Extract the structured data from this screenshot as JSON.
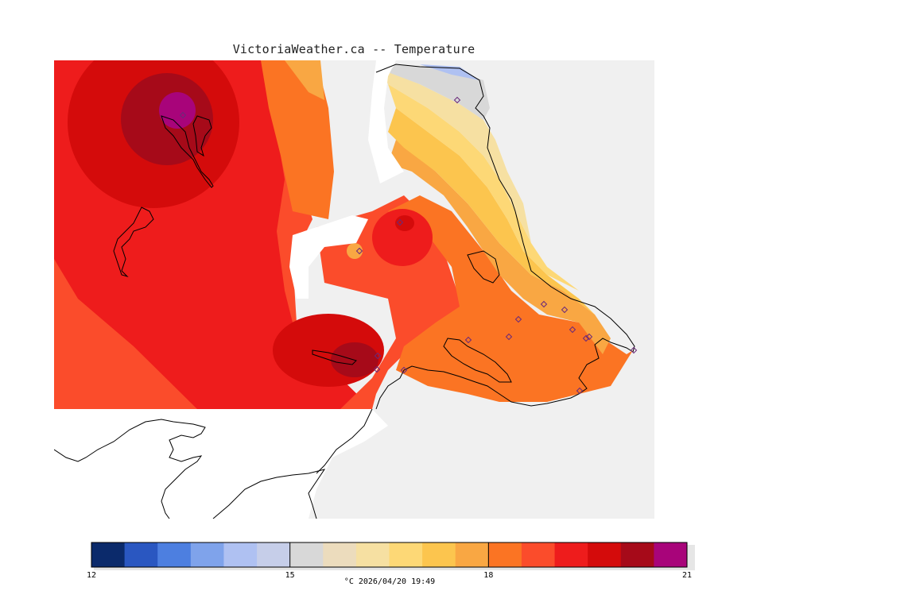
{
  "header": {
    "title": "VictoriaWeather.ca -- Temperature"
  },
  "legend": {
    "colors": [
      "#0b2a6b",
      "#2a57c1",
      "#4d7fe0",
      "#7fa3eb",
      "#afc1f2",
      "#c6cee9",
      "#d8d8d8",
      "#ecdcbd",
      "#f6e0a2",
      "#fdd876",
      "#fcc54e",
      "#f9a743",
      "#fb7423",
      "#fb4c2b",
      "#ee1c1c",
      "#d40b0b",
      "#a60a19",
      "#a8047a"
    ],
    "min": 12,
    "max": 21,
    "step": 0.5,
    "ticks": [
      "12",
      "15",
      "18",
      "21"
    ],
    "unit_label": "°C  2026/04/20 19:49"
  },
  "stations": [
    [
      230,
      145
    ],
    [
      575,
      126
    ],
    [
      503,
      280
    ],
    [
      452,
      316
    ],
    [
      475,
      448
    ],
    [
      508,
      466
    ],
    [
      474,
      465
    ],
    [
      589,
      428
    ],
    [
      652,
      402
    ],
    [
      640,
      424
    ],
    [
      684,
      383
    ],
    [
      710,
      390
    ],
    [
      720,
      415
    ],
    [
      737,
      426
    ],
    [
      741,
      424
    ],
    [
      797,
      441
    ],
    [
      729,
      492
    ]
  ]
}
